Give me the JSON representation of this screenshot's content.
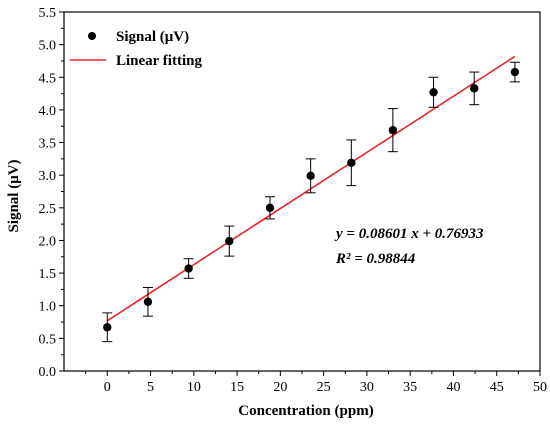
{
  "chart_data": {
    "type": "scatter",
    "xlabel": "Concentration (ppm)",
    "ylabel": "Signal (μV)",
    "xlim": [
      -5,
      50
    ],
    "ylim": [
      0,
      5.5
    ],
    "x_ticks": [
      0,
      5,
      10,
      15,
      20,
      25,
      30,
      35,
      40,
      45,
      50
    ],
    "y_ticks": [
      "0.0",
      "0.5",
      "1.0",
      "1.5",
      "2.0",
      "2.5",
      "3.0",
      "3.5",
      "4.0",
      "4.5",
      "5.0",
      "5.5"
    ],
    "series": [
      {
        "name": "Signal (μV)",
        "marker": "circle",
        "color": "#000000",
        "x": [
          0,
          4.7,
          9.4,
          14.1,
          18.8,
          23.5,
          28.2,
          33.0,
          37.7,
          42.4,
          47.1
        ],
        "y": [
          0.67,
          1.06,
          1.57,
          1.99,
          2.5,
          2.99,
          3.19,
          3.69,
          4.27,
          4.33,
          4.58
        ],
        "err": [
          0.22,
          0.22,
          0.15,
          0.23,
          0.17,
          0.26,
          0.35,
          0.33,
          0.23,
          0.25,
          0.15
        ]
      },
      {
        "name": "Linear fitting",
        "type": "line",
        "color": "#e8262a",
        "x": [
          0,
          47.1
        ],
        "y": [
          0.76933,
          4.82
        ]
      }
    ],
    "legend": {
      "placement": "top-left",
      "entries": [
        "Signal (μV)",
        "Linear fitting"
      ]
    },
    "annotations": {
      "equation": "y = 0.08601 x + 0.76933",
      "r2": "R² = 0.98844"
    }
  }
}
